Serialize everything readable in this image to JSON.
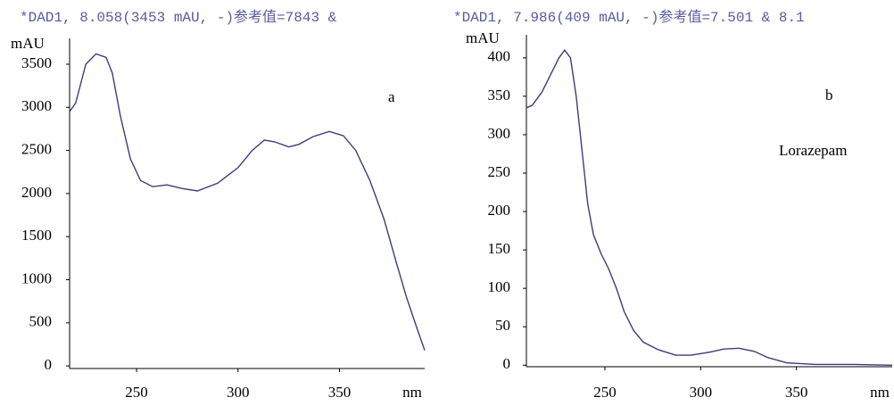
{
  "chart_data": [
    {
      "type": "line",
      "title": "*DAD1, 8.058(3453 mAU, -)参考值=7843 &",
      "ylabel": "mAU",
      "xlabel": "nm",
      "annotations": [
        "a"
      ],
      "color": "#3c3c7c",
      "xlim": [
        217,
        392
      ],
      "xticks": [
        250,
        300,
        350
      ],
      "ylim": [
        -30,
        3800
      ],
      "yticks": [
        0,
        500,
        1000,
        1500,
        2000,
        2500,
        3000,
        3500
      ],
      "x": [
        217,
        220,
        225,
        230,
        235,
        238,
        242,
        247,
        252,
        258,
        265,
        272,
        280,
        290,
        300,
        307,
        313,
        318,
        325,
        330,
        337,
        345,
        352,
        358,
        365,
        372,
        378,
        383,
        388,
        392
      ],
      "values": [
        2950,
        3050,
        3500,
        3620,
        3580,
        3400,
        2900,
        2400,
        2150,
        2080,
        2100,
        2060,
        2030,
        2120,
        2300,
        2500,
        2620,
        2600,
        2540,
        2570,
        2660,
        2720,
        2670,
        2500,
        2150,
        1700,
        1200,
        800,
        450,
        180
      ]
    },
    {
      "type": "line",
      "title": "*DAD1, 7.986(409 mAU, -)参考值=7.501 & 8.1",
      "ylabel": "mAU",
      "xlabel": "nm",
      "annotations": [
        "b",
        "Lorazepam"
      ],
      "color": "#3c3c7c",
      "xlim": [
        209,
        400
      ],
      "xticks": [
        250,
        300,
        350
      ],
      "ylim": [
        -2,
        430
      ],
      "yticks": [
        0,
        50,
        100,
        150,
        200,
        250,
        300,
        350,
        400
      ],
      "x": [
        209,
        212,
        217,
        222,
        226,
        229,
        232,
        235,
        238,
        241,
        244,
        248,
        252,
        256,
        260,
        265,
        270,
        278,
        287,
        295,
        305,
        312,
        320,
        328,
        335,
        345,
        360,
        380,
        400
      ],
      "values": [
        335,
        338,
        355,
        380,
        400,
        410,
        400,
        350,
        280,
        210,
        170,
        145,
        125,
        100,
        70,
        45,
        30,
        20,
        13,
        13,
        17,
        21,
        22,
        18,
        10,
        3,
        1,
        1,
        0
      ]
    }
  ]
}
